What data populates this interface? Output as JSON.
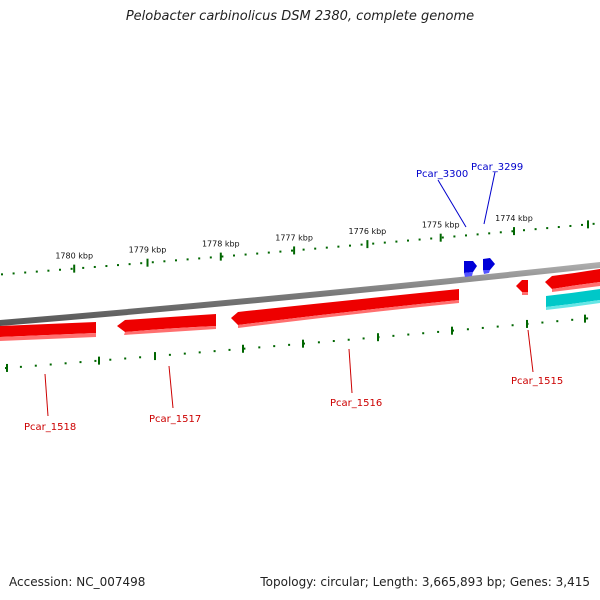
{
  "title": "Pelobacter carbinolicus DSM 2380, complete genome",
  "footer": {
    "accession": "Accession: NC_007498",
    "topology": "Topology: circular; Length: 3,665,893 bp; Genes: 3,415"
  },
  "colors": {
    "backbone": "#808080",
    "forward_gene": "#0000cc",
    "reverse_gene": "#ee0000",
    "rna_gene": "#00cccc",
    "tick": "#006600",
    "forward_label": "#0000cc",
    "reverse_label": "#cc0000"
  },
  "scale": {
    "unit": "kbp",
    "major_ticks": [
      {
        "kbp": 1774,
        "label": "1774 kbp"
      },
      {
        "kbp": 1775,
        "label": "1775 kbp"
      },
      {
        "kbp": 1776,
        "label": "1776 kbp"
      },
      {
        "kbp": 1777,
        "label": "1777 kbp"
      },
      {
        "kbp": 1778,
        "label": "1778 kbp"
      },
      {
        "kbp": 1779,
        "label": "1779 kbp"
      },
      {
        "kbp": 1780,
        "label": "1780 kbp"
      }
    ]
  },
  "genes": [
    {
      "id": "Pcar_3300",
      "strand": "forward"
    },
    {
      "id": "Pcar_3299",
      "strand": "forward"
    },
    {
      "id": "Pcar_1515",
      "strand": "reverse"
    },
    {
      "id": "Pcar_1516",
      "strand": "reverse"
    },
    {
      "id": "Pcar_1517",
      "strand": "reverse"
    },
    {
      "id": "Pcar_1518",
      "strand": "reverse"
    }
  ]
}
